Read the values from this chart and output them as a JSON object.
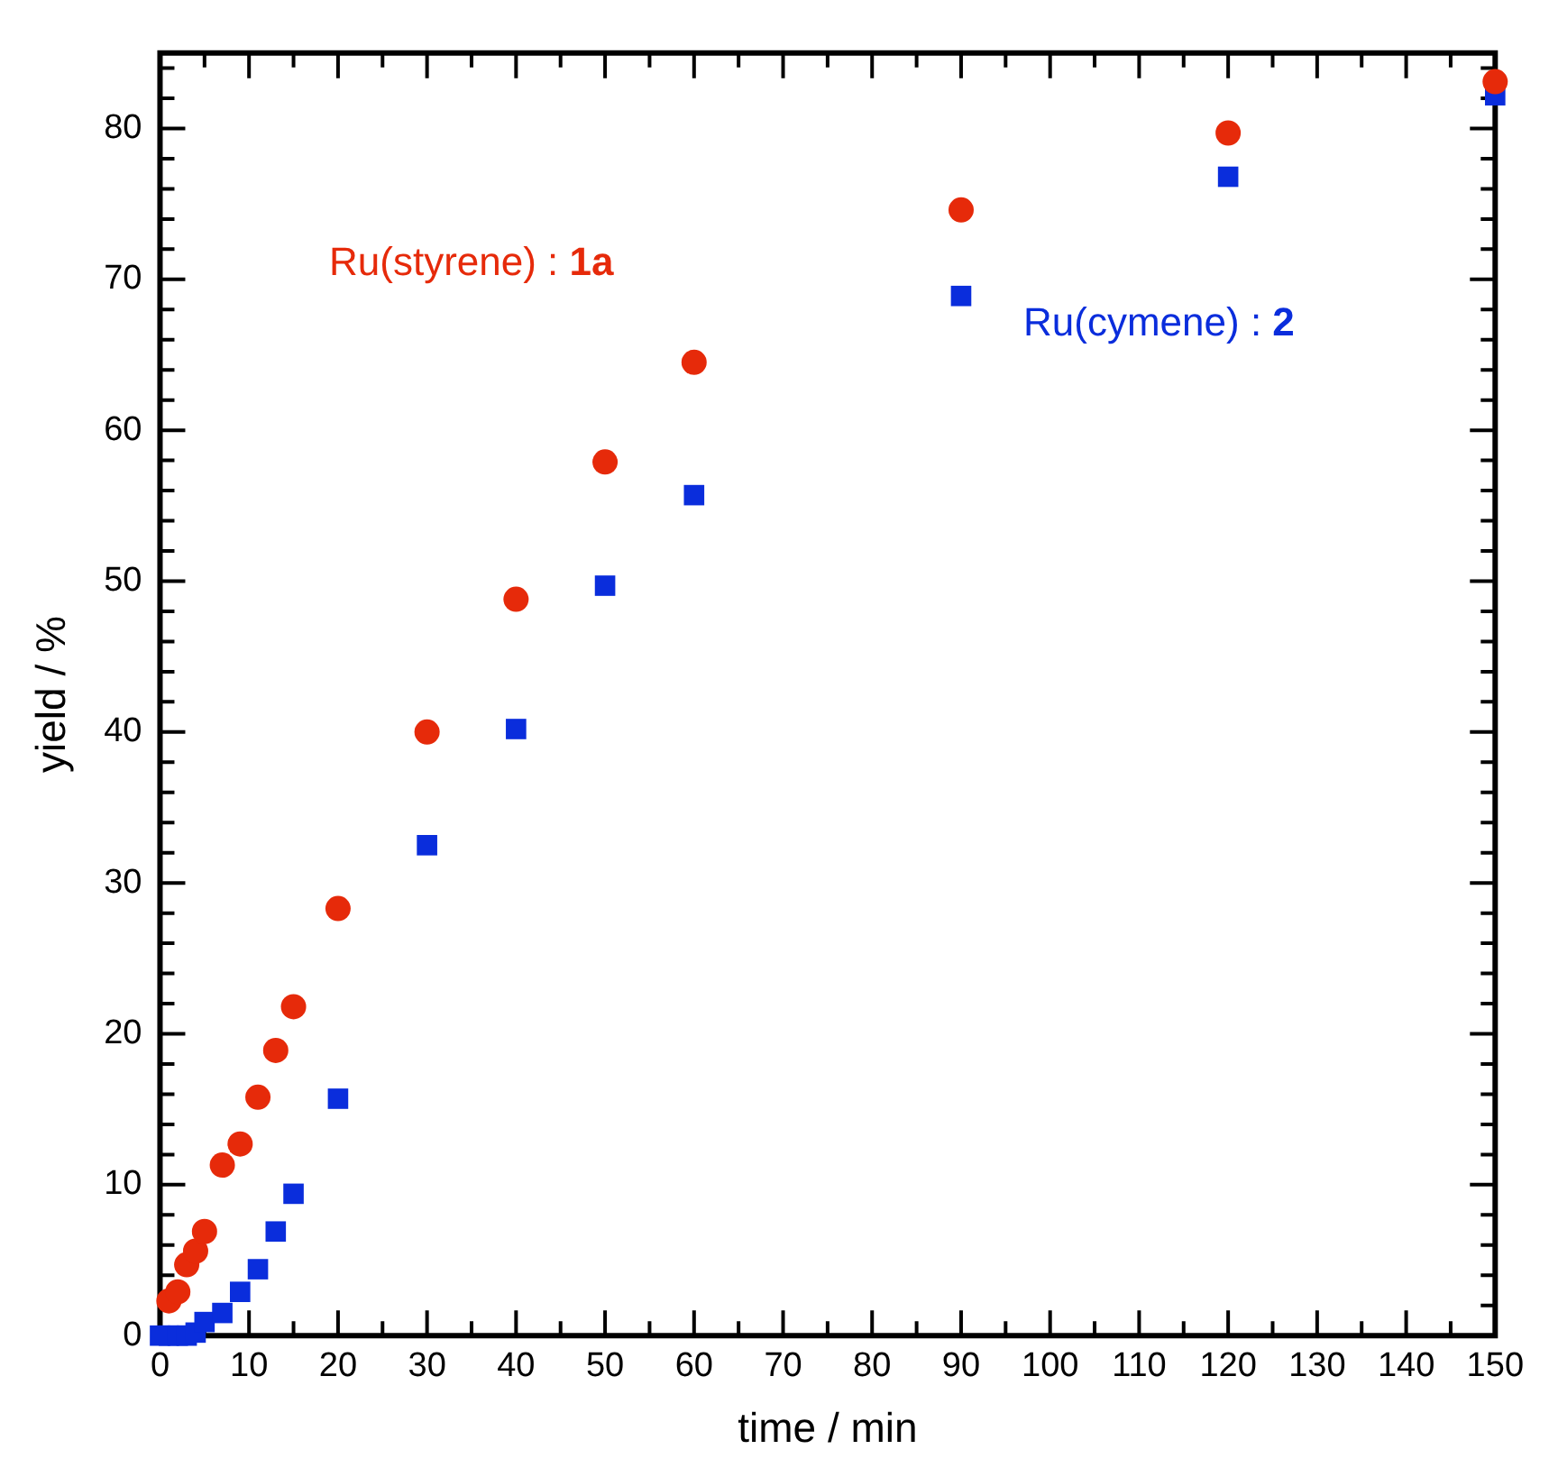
{
  "chart_data": {
    "type": "scatter",
    "xlabel": "time / min",
    "ylabel": "yield / %",
    "xlim": [
      0,
      150
    ],
    "ylim": [
      0,
      85
    ],
    "xticks": [
      0,
      {
        "value": 5,
        "label": null
      },
      10,
      {
        "value": 15,
        "label": null
      },
      20,
      {
        "value": 25,
        "label": null
      },
      30,
      {
        "value": 35,
        "label": null
      },
      40,
      {
        "value": 45,
        "label": null
      },
      50,
      {
        "value": 55,
        "label": null
      },
      60,
      {
        "value": 65,
        "label": null
      },
      70,
      {
        "value": 75,
        "label": null
      },
      80,
      {
        "value": 85,
        "label": null
      },
      90,
      {
        "value": 95,
        "label": null
      },
      100,
      {
        "value": 105,
        "label": null
      },
      110,
      {
        "value": 115,
        "label": null
      },
      120,
      {
        "value": 125,
        "label": null
      },
      130,
      {
        "value": 135,
        "label": null
      },
      140,
      {
        "value": 145,
        "label": null
      },
      150
    ],
    "yticks": [
      0,
      {
        "value": 2,
        "label": null
      },
      {
        "value": 4,
        "label": null
      },
      {
        "value": 6,
        "label": null
      },
      {
        "value": 8,
        "label": null
      },
      10,
      {
        "value": 12,
        "label": null
      },
      {
        "value": 14,
        "label": null
      },
      {
        "value": 16,
        "label": null
      },
      {
        "value": 18,
        "label": null
      },
      20,
      {
        "value": 22,
        "label": null
      },
      {
        "value": 24,
        "label": null
      },
      {
        "value": 26,
        "label": null
      },
      {
        "value": 28,
        "label": null
      },
      30,
      {
        "value": 32,
        "label": null
      },
      {
        "value": 34,
        "label": null
      },
      {
        "value": 36,
        "label": null
      },
      {
        "value": 38,
        "label": null
      },
      40,
      {
        "value": 42,
        "label": null
      },
      {
        "value": 44,
        "label": null
      },
      {
        "value": 46,
        "label": null
      },
      {
        "value": 48,
        "label": null
      },
      50,
      {
        "value": 52,
        "label": null
      },
      {
        "value": 54,
        "label": null
      },
      {
        "value": 56,
        "label": null
      },
      {
        "value": 58,
        "label": null
      },
      60,
      {
        "value": 62,
        "label": null
      },
      {
        "value": 64,
        "label": null
      },
      {
        "value": 66,
        "label": null
      },
      {
        "value": 68,
        "label": null
      },
      70,
      {
        "value": 72,
        "label": null
      },
      {
        "value": 74,
        "label": null
      },
      {
        "value": 76,
        "label": null
      },
      {
        "value": 78,
        "label": null
      },
      80,
      {
        "value": 82,
        "label": null
      },
      {
        "value": 84,
        "label": null
      }
    ],
    "grid": false,
    "legend": false,
    "series": [
      {
        "name": "Ru(styrene) : 1a",
        "color": "#e62a0a",
        "marker": "circle",
        "x": [
          1,
          2,
          3,
          4,
          5,
          7,
          9,
          11,
          13,
          15,
          20,
          30,
          40,
          50,
          60,
          90,
          120,
          150
        ],
        "values": [
          2.3,
          2.9,
          4.7,
          5.6,
          6.9,
          11.3,
          12.7,
          15.8,
          18.9,
          21.8,
          28.3,
          40,
          48.8,
          57.9,
          64.5,
          74.6,
          79.7,
          83.1
        ]
      },
      {
        "name": "Ru(cymene) : 2",
        "color": "#0a2ddc",
        "marker": "square",
        "x": [
          0,
          1,
          2,
          3,
          4,
          5,
          7,
          9,
          11,
          13,
          15,
          20,
          30,
          40,
          50,
          60,
          90,
          120,
          150
        ],
        "values": [
          0,
          0,
          0,
          0,
          0.2,
          0.9,
          1.5,
          2.9,
          4.4,
          6.9,
          9.4,
          15.7,
          32.5,
          40.2,
          49.7,
          55.7,
          68.9,
          76.8,
          82.2
        ]
      }
    ]
  }
}
